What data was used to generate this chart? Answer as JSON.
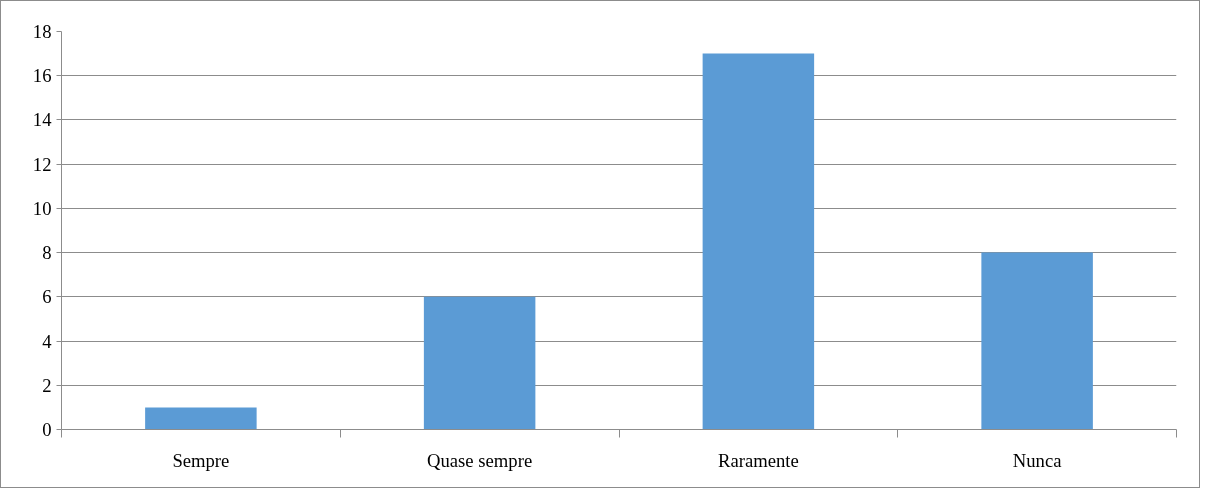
{
  "chart_data": {
    "type": "bar",
    "categories": [
      "Sempre",
      "Quase sempre",
      "Raramente",
      "Nunca"
    ],
    "values": [
      1,
      6,
      17,
      8
    ],
    "color": "#5b9bd5",
    "ylim": [
      0,
      18
    ],
    "yticks": [
      0,
      2,
      4,
      6,
      8,
      10,
      12,
      14,
      16,
      18
    ],
    "grid": "y"
  }
}
